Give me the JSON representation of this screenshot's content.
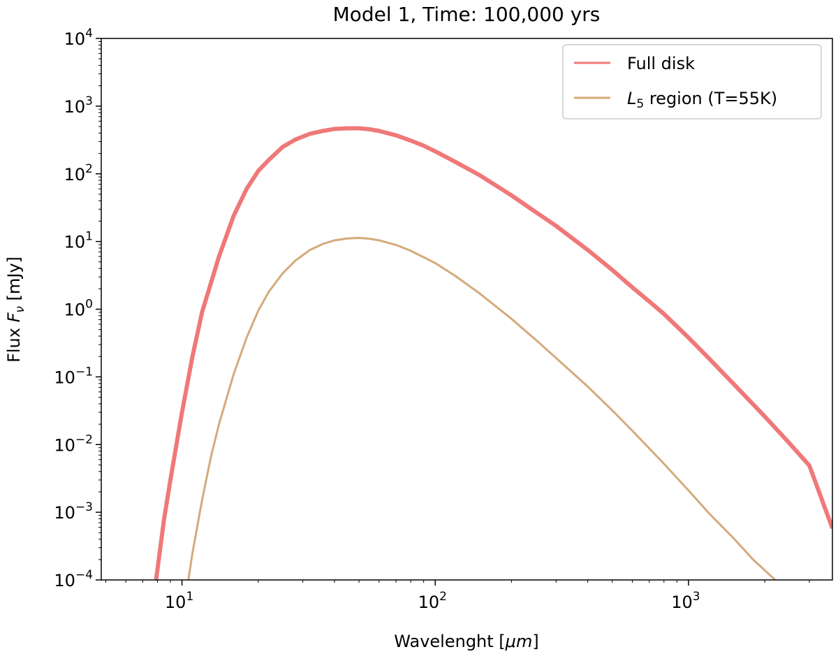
{
  "chart_data": {
    "type": "line",
    "title": "Model 1, Time: 100,000 yrs",
    "xlabel": "Wavelenght [",
    "xlabel_math": "μm",
    "xlabel_end": "]",
    "ylabel": "Flux ",
    "ylabel_math": "F",
    "ylabel_sub": "ν",
    "ylabel_end": " [mJy]",
    "x_scale": "log",
    "y_scale": "log",
    "xlim": [
      4.8,
      3700
    ],
    "ylim": [
      0.0001,
      10000
    ],
    "x_ticks": [
      {
        "value": 10,
        "base": "10",
        "exp": "1"
      },
      {
        "value": 100,
        "base": "10",
        "exp": "2"
      },
      {
        "value": 1000,
        "base": "10",
        "exp": "3"
      }
    ],
    "y_ticks": [
      {
        "value": 0.0001,
        "base": "10",
        "exp": "−4"
      },
      {
        "value": 0.001,
        "base": "10",
        "exp": "−3"
      },
      {
        "value": 0.01,
        "base": "10",
        "exp": "−2"
      },
      {
        "value": 0.1,
        "base": "10",
        "exp": "−1"
      },
      {
        "value": 1,
        "base": "10",
        "exp": "0"
      },
      {
        "value": 10,
        "base": "10",
        "exp": "1"
      },
      {
        "value": 100,
        "base": "10",
        "exp": "2"
      },
      {
        "value": 1000,
        "base": "10",
        "exp": "3"
      },
      {
        "value": 10000,
        "base": "10",
        "exp": "4"
      }
    ],
    "grid": false,
    "legend_position": "top-right",
    "series": [
      {
        "name": "Full disk",
        "color": "#f07878",
        "x": [
          7.9,
          8.5,
          9,
          10,
          11,
          12,
          14,
          16,
          18,
          20,
          22,
          25,
          28,
          32,
          36,
          40,
          45,
          50,
          55,
          60,
          70,
          80,
          90,
          100,
          120,
          150,
          200,
          250,
          300,
          400,
          500,
          600,
          700,
          800,
          1000,
          1200,
          1500,
          2000,
          2500,
          3000,
          3700
        ],
        "y": [
          0.0001,
          0.0008,
          0.003,
          0.03,
          0.2,
          0.9,
          6,
          24,
          60,
          110,
          160,
          250,
          320,
          390,
          430,
          460,
          470,
          470,
          455,
          430,
          370,
          310,
          260,
          215,
          150,
          95,
          48,
          27,
          17,
          7.5,
          3.8,
          2.1,
          1.3,
          0.85,
          0.38,
          0.19,
          0.08,
          0.026,
          0.0105,
          0.0049,
          0.00058
        ]
      },
      {
        "name": "L5 region (T=55K)",
        "label_math": "L",
        "label_sub": "5",
        "label_rest": " region (T=55K)",
        "color": "#d4aa7d",
        "x": [
          10.6,
          11,
          12,
          13,
          14,
          16,
          18,
          20,
          22,
          25,
          28,
          32,
          36,
          40,
          45,
          50,
          55,
          60,
          70,
          80,
          100,
          120,
          150,
          200,
          250,
          300,
          400,
          500,
          600,
          800,
          1000,
          1200,
          1500,
          1800,
          2200
        ],
        "y": [
          0.0001,
          0.00025,
          0.0015,
          0.0065,
          0.02,
          0.11,
          0.38,
          0.95,
          1.8,
          3.4,
          5.2,
          7.5,
          9.2,
          10.4,
          11.1,
          11.3,
          11.0,
          10.4,
          8.9,
          7.3,
          4.8,
          3.1,
          1.7,
          0.72,
          0.35,
          0.19,
          0.072,
          0.032,
          0.016,
          0.0052,
          0.0021,
          0.00098,
          0.00042,
          0.0002,
          0.0001
        ]
      }
    ]
  }
}
